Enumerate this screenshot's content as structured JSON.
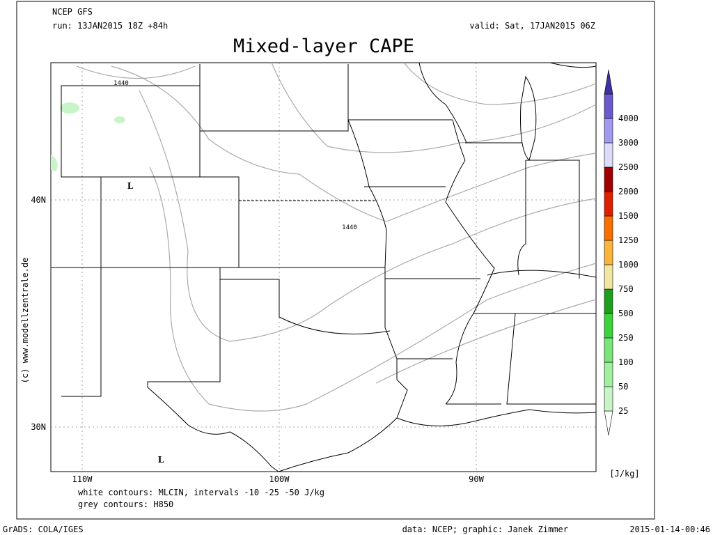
{
  "header": {
    "model": "NCEP GFS",
    "run": "run: 13JAN2015 18Z +84h",
    "valid": "valid: Sat, 17JAN2015 06Z",
    "title": "Mixed-layer CAPE"
  },
  "map": {
    "lon_labels": [
      "110W",
      "100W",
      "90W"
    ],
    "lat_labels": [
      "40N",
      "30N"
    ],
    "contour_labels": [
      "1440",
      "1440"
    ],
    "low_markers": [
      "L",
      "L"
    ],
    "copyright": "(c) www.modellzentrale.de"
  },
  "notes": [
    "white contours: MLCIN, intervals -10 -25 -50 J/kg",
    "grey contours: H850"
  ],
  "colorbar": {
    "unit": "[J/kg]",
    "below_color": "#ffffff",
    "above_color": "#3c32a0",
    "levels": [
      {
        "value": 25,
        "color": "#c8f5c8"
      },
      {
        "value": 50,
        "color": "#a0f0a0"
      },
      {
        "value": 100,
        "color": "#78e678"
      },
      {
        "value": 250,
        "color": "#3cd23c"
      },
      {
        "value": 500,
        "color": "#1ea01e"
      },
      {
        "value": 750,
        "color": "#f0e6a0"
      },
      {
        "value": 1000,
        "color": "#fab43c"
      },
      {
        "value": 1250,
        "color": "#fa6e00"
      },
      {
        "value": 1500,
        "color": "#e01e00"
      },
      {
        "value": 2000,
        "color": "#a00000"
      },
      {
        "value": 2500,
        "color": "#dcdcfa"
      },
      {
        "value": 3000,
        "color": "#a09bf0"
      },
      {
        "value": 4000,
        "color": "#6a5acd"
      }
    ]
  },
  "footer": {
    "software": "GrADS: COLA/IGES",
    "credits": "data: NCEP; graphic: Janek Zimmer",
    "timestamp": "2015-01-14-00:46"
  }
}
